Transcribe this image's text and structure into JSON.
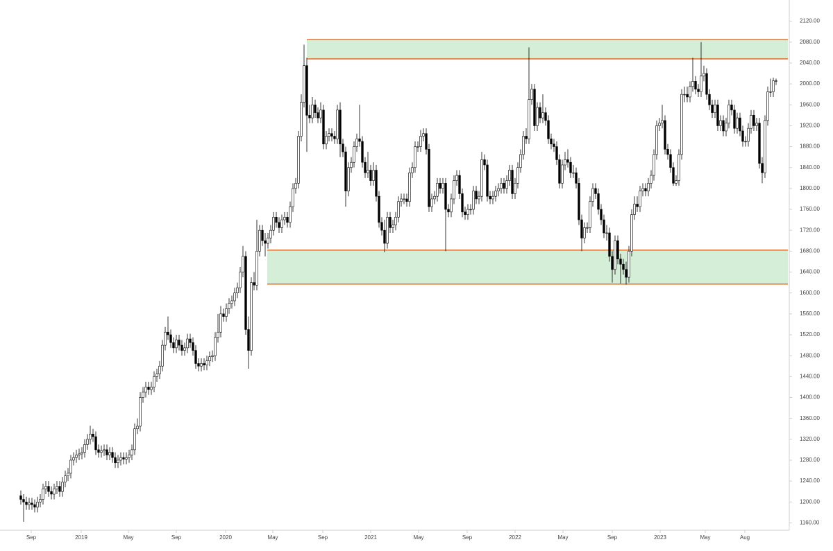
{
  "chart_data": {
    "type": "candlestick",
    "xlim": [
      -0.5,
      276.25
    ],
    "ylim": [
      1146,
      2150
    ],
    "xticks": [
      {
        "value": 3.75,
        "label": "Sep"
      },
      {
        "value": 21.75,
        "label": "2019"
      },
      {
        "value": 38.75,
        "label": "May"
      },
      {
        "value": 56,
        "label": "Sep"
      },
      {
        "value": 73.75,
        "label": "2020"
      },
      {
        "value": 90.75,
        "label": "May"
      },
      {
        "value": 108.75,
        "label": "Sep"
      },
      {
        "value": 126,
        "label": "2021"
      },
      {
        "value": 143.25,
        "label": "May"
      },
      {
        "value": 160.75,
        "label": "Sep"
      },
      {
        "value": 178,
        "label": "2022"
      },
      {
        "value": 195.25,
        "label": "May"
      },
      {
        "value": 213,
        "label": "Sep"
      },
      {
        "value": 230.25,
        "label": "2023"
      },
      {
        "value": 246.5,
        "label": "May"
      },
      {
        "value": 260.75,
        "label": "Aug"
      }
    ],
    "yticks": [
      {
        "value": 1160,
        "label": "1160.00"
      },
      {
        "value": 1200,
        "label": "1200.00"
      },
      {
        "value": 1240,
        "label": "1240.00"
      },
      {
        "value": 1280,
        "label": "1280.00"
      },
      {
        "value": 1320,
        "label": "1320.00"
      },
      {
        "value": 1360,
        "label": "1360.00"
      },
      {
        "value": 1400,
        "label": "1400.00"
      },
      {
        "value": 1440,
        "label": "1440.00"
      },
      {
        "value": 1480,
        "label": "1480.00"
      },
      {
        "value": 1520,
        "label": "1520.00"
      },
      {
        "value": 1560,
        "label": "1560.00"
      },
      {
        "value": 1600,
        "label": "1600.00"
      },
      {
        "value": 1640,
        "label": "1640.00"
      },
      {
        "value": 1680,
        "label": "1680.00"
      },
      {
        "value": 1720,
        "label": "1720.00"
      },
      {
        "value": 1760,
        "label": "1760.00"
      },
      {
        "value": 1800,
        "label": "1800.00"
      },
      {
        "value": 1840,
        "label": "1840.00"
      },
      {
        "value": 1880,
        "label": "1880.00"
      },
      {
        "value": 1920,
        "label": "1920.00"
      },
      {
        "value": 1960,
        "label": "1960.00"
      },
      {
        "value": 2000,
        "label": "2000.00"
      },
      {
        "value": 2040,
        "label": "2040.00"
      },
      {
        "value": 2080,
        "label": "2080.00"
      },
      {
        "value": 2120,
        "label": "2120.00"
      }
    ],
    "grid": false,
    "up_color": "#ffffff",
    "down_color": "#000000",
    "zone_color": "#d5eed8",
    "zone_line_color": "#e8742e",
    "zones": [
      {
        "x0": 103,
        "top": 2085,
        "bottom": 2048
      },
      {
        "x0": 88.75,
        "top": 1682,
        "bottom": 1617
      }
    ],
    "open": [
      1212,
      1205,
      1200,
      1195,
      1198,
      1195,
      1190,
      1200,
      1205,
      1225,
      1230,
      1220,
      1215,
      1225,
      1230,
      1220,
      1238,
      1250,
      1255,
      1280,
      1285,
      1290,
      1292,
      1295,
      1310,
      1320,
      1330,
      1325,
      1300,
      1295,
      1298,
      1300,
      1290,
      1295,
      1285,
      1275,
      1280,
      1285,
      1282,
      1285,
      1290,
      1300,
      1340,
      1345,
      1400,
      1410,
      1420,
      1415,
      1420,
      1440,
      1445,
      1460,
      1500,
      1525,
      1520,
      1505,
      1495,
      1510,
      1500,
      1490,
      1495,
      1512,
      1505,
      1490,
      1465,
      1460,
      1465,
      1462,
      1470,
      1478,
      1480,
      1515,
      1525,
      1560,
      1555,
      1570,
      1580,
      1585,
      1600,
      1610,
      1640,
      1670,
      1530,
      1490,
      1620,
      1615,
      1680,
      1720,
      1700,
      1695,
      1705,
      1720,
      1745,
      1735,
      1725,
      1740,
      1745,
      1735,
      1765,
      1800,
      1810,
      1900,
      1965,
      2035,
      1940,
      1935,
      1960,
      1945,
      1935,
      1950,
      1885,
      1900,
      1905,
      1900,
      1895,
      1950,
      1885,
      1870,
      1795,
      1840,
      1850,
      1880,
      1895,
      1890,
      1850,
      1830,
      1835,
      1815,
      1835,
      1785,
      1735,
      1720,
      1695,
      1745,
      1725,
      1730,
      1745,
      1775,
      1780,
      1780,
      1775,
      1830,
      1840,
      1880,
      1880,
      1900,
      1905,
      1875,
      1765,
      1780,
      1785,
      1810,
      1800,
      1810,
      1760,
      1755,
      1780,
      1815,
      1825,
      1790,
      1755,
      1750,
      1760,
      1760,
      1795,
      1780,
      1785,
      1855,
      1845,
      1785,
      1780,
      1785,
      1795,
      1800,
      1810,
      1800,
      1815,
      1835,
      1790,
      1810,
      1840,
      1865,
      1900,
      1895,
      1970,
      1990,
      1920,
      1955,
      1935,
      1945,
      1930,
      1895,
      1885,
      1880,
      1855,
      1810,
      1845,
      1855,
      1850,
      1830,
      1830,
      1810,
      1740,
      1705,
      1725,
      1725,
      1775,
      1800,
      1790,
      1760,
      1740,
      1715,
      1715,
      1670,
      1645,
      1700,
      1665,
      1655,
      1645,
      1630,
      1680,
      1750,
      1770,
      1765,
      1795,
      1800,
      1795,
      1810,
      1825,
      1865,
      1920,
      1925,
      1930,
      1875,
      1865,
      1840,
      1810,
      1815,
      1865,
      1980,
      1980,
      1975,
      1995,
      2005,
      1990,
      1985,
      2015,
      2020,
      1980,
      1960,
      1945,
      1960,
      1920,
      1930,
      1910,
      1925,
      1960,
      1950,
      1915,
      1935,
      1910,
      1890,
      1890,
      1915,
      1940,
      1920,
      1925,
      1848,
      1830,
      1930,
      1985,
      1985,
      2006
    ],
    "close": [
      1205,
      1200,
      1195,
      1198,
      1195,
      1190,
      1200,
      1205,
      1225,
      1230,
      1220,
      1215,
      1225,
      1230,
      1220,
      1238,
      1250,
      1255,
      1280,
      1285,
      1290,
      1292,
      1295,
      1310,
      1320,
      1330,
      1325,
      1300,
      1295,
      1298,
      1300,
      1290,
      1295,
      1285,
      1275,
      1280,
      1285,
      1282,
      1285,
      1290,
      1300,
      1340,
      1345,
      1400,
      1410,
      1420,
      1415,
      1420,
      1440,
      1445,
      1460,
      1500,
      1525,
      1520,
      1505,
      1495,
      1510,
      1500,
      1490,
      1495,
      1512,
      1505,
      1490,
      1465,
      1460,
      1465,
      1462,
      1470,
      1478,
      1480,
      1515,
      1525,
      1560,
      1555,
      1570,
      1580,
      1585,
      1600,
      1610,
      1640,
      1670,
      1530,
      1490,
      1620,
      1615,
      1680,
      1720,
      1700,
      1695,
      1705,
      1720,
      1745,
      1735,
      1725,
      1740,
      1745,
      1735,
      1765,
      1800,
      1810,
      1900,
      1965,
      2035,
      1940,
      1935,
      1960,
      1945,
      1935,
      1950,
      1885,
      1900,
      1905,
      1900,
      1895,
      1950,
      1885,
      1870,
      1795,
      1840,
      1850,
      1880,
      1895,
      1890,
      1850,
      1830,
      1835,
      1815,
      1835,
      1785,
      1735,
      1720,
      1695,
      1745,
      1725,
      1730,
      1745,
      1775,
      1780,
      1780,
      1775,
      1830,
      1840,
      1880,
      1880,
      1900,
      1905,
      1875,
      1765,
      1780,
      1785,
      1810,
      1800,
      1810,
      1760,
      1755,
      1780,
      1815,
      1825,
      1790,
      1755,
      1750,
      1760,
      1760,
      1795,
      1780,
      1785,
      1855,
      1845,
      1785,
      1780,
      1785,
      1795,
      1800,
      1810,
      1800,
      1815,
      1835,
      1790,
      1810,
      1840,
      1865,
      1900,
      1895,
      1970,
      1990,
      1920,
      1955,
      1935,
      1945,
      1930,
      1895,
      1885,
      1880,
      1855,
      1810,
      1845,
      1855,
      1850,
      1830,
      1830,
      1810,
      1740,
      1705,
      1725,
      1725,
      1775,
      1800,
      1790,
      1760,
      1740,
      1715,
      1715,
      1670,
      1645,
      1700,
      1665,
      1655,
      1645,
      1630,
      1680,
      1750,
      1770,
      1765,
      1795,
      1800,
      1795,
      1810,
      1825,
      1865,
      1920,
      1925,
      1930,
      1875,
      1865,
      1840,
      1810,
      1815,
      1865,
      1980,
      1980,
      1975,
      1995,
      2005,
      1990,
      1985,
      2015,
      2020,
      1980,
      1960,
      1945,
      1960,
      1920,
      1930,
      1910,
      1925,
      1960,
      1950,
      1915,
      1935,
      1910,
      1890,
      1890,
      1915,
      1940,
      1920,
      1925,
      1848,
      1830,
      1930,
      1985,
      1985,
      2006,
      2005
    ],
    "high": [
      1222,
      1215,
      1210,
      1208,
      1208,
      1205,
      1210,
      1215,
      1235,
      1240,
      1240,
      1230,
      1235,
      1240,
      1240,
      1248,
      1260,
      1265,
      1290,
      1295,
      1300,
      1302,
      1305,
      1320,
      1330,
      1346,
      1340,
      1335,
      1310,
      1308,
      1310,
      1310,
      1305,
      1305,
      1295,
      1290,
      1295,
      1295,
      1295,
      1300,
      1310,
      1350,
      1360,
      1410,
      1420,
      1430,
      1430,
      1430,
      1450,
      1455,
      1470,
      1510,
      1535,
      1555,
      1530,
      1515,
      1520,
      1520,
      1510,
      1505,
      1522,
      1522,
      1515,
      1500,
      1475,
      1475,
      1475,
      1480,
      1488,
      1490,
      1525,
      1560,
      1575,
      1570,
      1580,
      1590,
      1595,
      1610,
      1620,
      1650,
      1690,
      1680,
      1555,
      1630,
      1640,
      1740,
      1730,
      1730,
      1715,
      1715,
      1730,
      1755,
      1755,
      1745,
      1750,
      1755,
      1755,
      1775,
      1810,
      1820,
      1910,
      1980,
      2075,
      2050,
      1960,
      1975,
      1970,
      1955,
      1965,
      1960,
      1910,
      1915,
      1915,
      1910,
      1960,
      1965,
      1895,
      1880,
      1850,
      1860,
      1890,
      1905,
      1960,
      1900,
      1860,
      1870,
      1845,
      1850,
      1845,
      1795,
      1745,
      1740,
      1755,
      1755,
      1740,
      1755,
      1785,
      1790,
      1790,
      1790,
      1840,
      1850,
      1890,
      1890,
      1912,
      1915,
      1915,
      1885,
      1790,
      1795,
      1820,
      1820,
      1820,
      1820,
      1770,
      1790,
      1825,
      1835,
      1835,
      1800,
      1765,
      1770,
      1770,
      1805,
      1805,
      1795,
      1870,
      1865,
      1855,
      1795,
      1795,
      1805,
      1810,
      1820,
      1820,
      1825,
      1845,
      1845,
      1820,
      1850,
      1875,
      1910,
      1915,
      2070,
      2000,
      2000,
      1965,
      1965,
      1980,
      1955,
      1940,
      1905,
      1895,
      1890,
      1865,
      1855,
      1870,
      1875,
      1860,
      1845,
      1840,
      1820,
      1750,
      1735,
      1735,
      1785,
      1810,
      1810,
      1800,
      1770,
      1750,
      1730,
      1725,
      1680,
      1710,
      1710,
      1675,
      1665,
      1660,
      1690,
      1760,
      1785,
      1785,
      1805,
      1810,
      1810,
      1820,
      1835,
      1875,
      1930,
      1935,
      1960,
      1940,
      1885,
      1875,
      1850,
      1825,
      1875,
      1990,
      1995,
      1995,
      2005,
      2050,
      2015,
      2000,
      2080,
      2035,
      2030,
      1990,
      1970,
      1970,
      1970,
      1940,
      1940,
      1935,
      1970,
      1970,
      1960,
      1945,
      1945,
      1920,
      1900,
      1925,
      1950,
      1950,
      1935,
      1935,
      1860,
      1940,
      1995,
      2010,
      2012,
      2010
    ],
    "low": [
      1195,
      1162,
      1185,
      1185,
      1185,
      1180,
      1180,
      1190,
      1195,
      1215,
      1210,
      1205,
      1205,
      1215,
      1210,
      1210,
      1228,
      1240,
      1245,
      1270,
      1275,
      1280,
      1282,
      1285,
      1300,
      1310,
      1315,
      1290,
      1285,
      1285,
      1288,
      1280,
      1280,
      1275,
      1265,
      1265,
      1270,
      1272,
      1272,
      1275,
      1280,
      1290,
      1330,
      1335,
      1390,
      1400,
      1405,
      1405,
      1410,
      1430,
      1435,
      1450,
      1490,
      1510,
      1495,
      1485,
      1485,
      1490,
      1480,
      1480,
      1485,
      1495,
      1480,
      1455,
      1450,
      1450,
      1452,
      1452,
      1460,
      1468,
      1470,
      1505,
      1515,
      1545,
      1545,
      1560,
      1570,
      1575,
      1590,
      1600,
      1630,
      1520,
      1455,
      1480,
      1605,
      1605,
      1670,
      1690,
      1670,
      1685,
      1695,
      1710,
      1725,
      1715,
      1715,
      1730,
      1725,
      1725,
      1755,
      1790,
      1800,
      1890,
      1955,
      1870,
      1925,
      1925,
      1935,
      1925,
      1925,
      1875,
      1875,
      1890,
      1890,
      1885,
      1885,
      1860,
      1860,
      1765,
      1785,
      1830,
      1840,
      1870,
      1880,
      1840,
      1820,
      1820,
      1805,
      1805,
      1775,
      1725,
      1710,
      1678,
      1685,
      1715,
      1715,
      1720,
      1735,
      1765,
      1770,
      1765,
      1765,
      1820,
      1830,
      1870,
      1870,
      1890,
      1865,
      1755,
      1755,
      1770,
      1775,
      1790,
      1790,
      1680,
      1745,
      1745,
      1770,
      1805,
      1780,
      1745,
      1740,
      1740,
      1750,
      1750,
      1770,
      1770,
      1775,
      1835,
      1775,
      1770,
      1770,
      1775,
      1785,
      1790,
      1790,
      1790,
      1805,
      1780,
      1780,
      1800,
      1830,
      1855,
      1885,
      1885,
      1960,
      1910,
      1910,
      1925,
      1925,
      1920,
      1885,
      1875,
      1870,
      1845,
      1800,
      1800,
      1835,
      1840,
      1820,
      1820,
      1800,
      1730,
      1680,
      1695,
      1715,
      1715,
      1765,
      1780,
      1750,
      1730,
      1705,
      1700,
      1660,
      1620,
      1635,
      1655,
      1618,
      1635,
      1616,
      1620,
      1670,
      1740,
      1755,
      1755,
      1785,
      1785,
      1785,
      1800,
      1815,
      1855,
      1910,
      1915,
      1865,
      1855,
      1830,
      1805,
      1805,
      1805,
      1855,
      1965,
      1965,
      1965,
      1985,
      1980,
      1975,
      1975,
      2005,
      1970,
      1950,
      1935,
      1935,
      1910,
      1910,
      1900,
      1900,
      1915,
      1940,
      1905,
      1905,
      1900,
      1880,
      1880,
      1880,
      1905,
      1910,
      1910,
      1838,
      1810,
      1820,
      1920,
      1975,
      1975,
      1998
    ]
  }
}
